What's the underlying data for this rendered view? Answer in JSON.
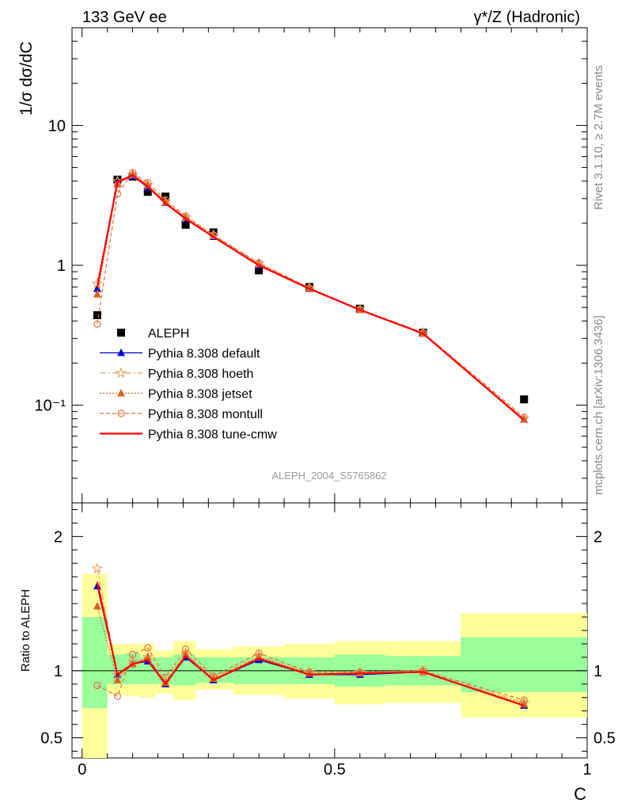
{
  "header": {
    "left_title": "133 GeV ee",
    "right_title": "γ*/Z (Hadronic)"
  },
  "side_labels": {
    "top": "Rivet 3.1.10, ≥ 2.7M events",
    "bottom": "mcplots.cern.ch [arXiv:1306.3436]"
  },
  "watermark": "ALEPH_2004_S5765862",
  "colors": {
    "data": "#000000",
    "default": "#0000cc",
    "hoeth": "#e0a060",
    "jetset": "#e06020",
    "montull": "#e07040",
    "tune_cmw": "#ff0000",
    "band_inner": "#99ff99",
    "band_outer": "#ffff99"
  },
  "chart_data": [
    {
      "type": "scatter",
      "panel": "main",
      "ylabel": "1/σ  dσ/dC",
      "yscale": "log",
      "ylim": [
        0.02,
        50
      ],
      "xlim": [
        -0.02,
        1.0
      ],
      "yticks": [
        {
          "v": 10,
          "label": "10"
        },
        {
          "v": 1,
          "label": "1"
        },
        {
          "v": 0.1,
          "label": "10⁻¹"
        }
      ],
      "legend": [
        "ALEPH",
        "Pythia 8.308 default",
        "Pythia 8.308 hoeth",
        "Pythia 8.308 jetset",
        "Pythia 8.308 montull",
        "Pythia 8.308 tune-cmw"
      ],
      "legend_position": "bottom-left",
      "x": [
        0.03,
        0.07,
        0.1,
        0.13,
        0.165,
        0.205,
        0.26,
        0.35,
        0.45,
        0.55,
        0.675,
        0.875
      ],
      "series": [
        {
          "name": "ALEPH",
          "key": "aleph",
          "values": [
            0.44,
            4.1,
            4.3,
            3.35,
            3.1,
            1.95,
            1.72,
            0.92,
            0.7,
            0.49,
            0.33,
            0.11
          ]
        },
        {
          "name": "Pythia 8.308 default",
          "key": "default",
          "values": [
            0.68,
            3.9,
            4.35,
            3.6,
            2.8,
            2.15,
            1.6,
            1.0,
            0.68,
            0.48,
            0.325,
            0.079
          ]
        },
        {
          "name": "Pythia 8.308 hoeth",
          "key": "hoeth",
          "values": [
            0.74,
            4.0,
            4.45,
            3.75,
            2.85,
            2.2,
            1.65,
            1.03,
            0.69,
            0.485,
            0.33,
            0.08
          ]
        },
        {
          "name": "Pythia 8.308 jetset",
          "key": "jetset",
          "values": [
            0.62,
            3.8,
            4.5,
            3.75,
            2.82,
            2.2,
            1.62,
            1.02,
            0.685,
            0.48,
            0.325,
            0.079
          ]
        },
        {
          "name": "Pythia 8.308 montull",
          "key": "montull",
          "values": [
            0.38,
            3.25,
            4.6,
            3.9,
            2.95,
            2.25,
            1.65,
            1.04,
            0.69,
            0.485,
            0.33,
            0.082
          ]
        },
        {
          "name": "Pythia 8.308 tune-cmw",
          "key": "tune_cmw",
          "values": [
            0.7,
            3.95,
            4.4,
            3.65,
            2.78,
            2.15,
            1.6,
            1.0,
            0.68,
            0.48,
            0.325,
            0.078
          ]
        }
      ]
    },
    {
      "type": "line",
      "panel": "ratio",
      "ylabel": "Ratio to ALEPH",
      "xlabel": "C",
      "ylim": [
        0.35,
        2.25
      ],
      "xlim": [
        -0.02,
        1.0
      ],
      "yticks": [
        {
          "v": 2,
          "label": "2"
        },
        {
          "v": 1,
          "label": "1"
        },
        {
          "v": 0.5,
          "label": "0.5"
        }
      ],
      "xticks": [
        {
          "v": 0,
          "label": "0"
        },
        {
          "v": 0.5,
          "label": "0.5"
        },
        {
          "v": 1,
          "label": "1"
        }
      ],
      "bands": [
        {
          "x0": 0.0,
          "x1": 0.05,
          "inner": [
            0.72,
            1.4
          ],
          "outer": [
            0.35,
            1.72
          ]
        },
        {
          "x0": 0.05,
          "x1": 0.085,
          "inner": [
            0.9,
            1.12
          ],
          "outer": [
            0.82,
            1.2
          ]
        },
        {
          "x0": 0.085,
          "x1": 0.115,
          "inner": [
            0.9,
            1.13
          ],
          "outer": [
            0.81,
            1.2
          ]
        },
        {
          "x0": 0.115,
          "x1": 0.145,
          "inner": [
            0.9,
            1.1
          ],
          "outer": [
            0.8,
            1.2
          ]
        },
        {
          "x0": 0.145,
          "x1": 0.18,
          "inner": [
            0.9,
            1.1
          ],
          "outer": [
            0.83,
            1.15
          ]
        },
        {
          "x0": 0.18,
          "x1": 0.225,
          "inner": [
            0.89,
            1.12
          ],
          "outer": [
            0.78,
            1.22
          ]
        },
        {
          "x0": 0.225,
          "x1": 0.3,
          "inner": [
            0.91,
            1.1
          ],
          "outer": [
            0.86,
            1.16
          ]
        },
        {
          "x0": 0.3,
          "x1": 0.4,
          "inner": [
            0.9,
            1.1
          ],
          "outer": [
            0.82,
            1.18
          ]
        },
        {
          "x0": 0.4,
          "x1": 0.5,
          "inner": [
            0.9,
            1.1
          ],
          "outer": [
            0.79,
            1.2
          ]
        },
        {
          "x0": 0.5,
          "x1": 0.6,
          "inner": [
            0.88,
            1.12
          ],
          "outer": [
            0.75,
            1.22
          ]
        },
        {
          "x0": 0.6,
          "x1": 0.75,
          "inner": [
            0.89,
            1.11
          ],
          "outer": [
            0.76,
            1.22
          ]
        },
        {
          "x0": 0.75,
          "x1": 1.0,
          "inner": [
            0.84,
            1.25
          ],
          "outer": [
            0.65,
            1.43
          ]
        }
      ],
      "x": [
        0.03,
        0.07,
        0.1,
        0.13,
        0.165,
        0.205,
        0.26,
        0.35,
        0.45,
        0.55,
        0.675,
        0.875
      ],
      "series": [
        {
          "name": "Pythia 8.308 default",
          "key": "default",
          "values": [
            1.63,
            0.97,
            1.05,
            1.07,
            0.9,
            1.1,
            0.93,
            1.08,
            0.97,
            0.97,
            0.99,
            0.74
          ]
        },
        {
          "name": "Pythia 8.308 hoeth",
          "key": "hoeth",
          "values": [
            1.76,
            0.97,
            1.07,
            1.1,
            0.92,
            1.13,
            0.95,
            1.11,
            0.99,
            0.99,
            1.0,
            0.76
          ]
        },
        {
          "name": "Pythia 8.308 jetset",
          "key": "jetset",
          "values": [
            1.48,
            0.93,
            1.05,
            1.1,
            0.91,
            1.12,
            0.94,
            1.1,
            0.98,
            0.98,
            0.99,
            0.75
          ]
        },
        {
          "name": "Pythia 8.308 montull",
          "key": "montull",
          "values": [
            0.89,
            0.81,
            1.12,
            1.17,
            0.95,
            1.16,
            0.96,
            1.13,
            0.99,
            0.99,
            1.0,
            0.78
          ]
        },
        {
          "name": "Pythia 8.308 tune-cmw",
          "key": "tune_cmw",
          "values": [
            1.66,
            0.97,
            1.05,
            1.08,
            0.9,
            1.11,
            0.93,
            1.09,
            0.97,
            0.98,
            0.99,
            0.74
          ]
        }
      ]
    }
  ]
}
